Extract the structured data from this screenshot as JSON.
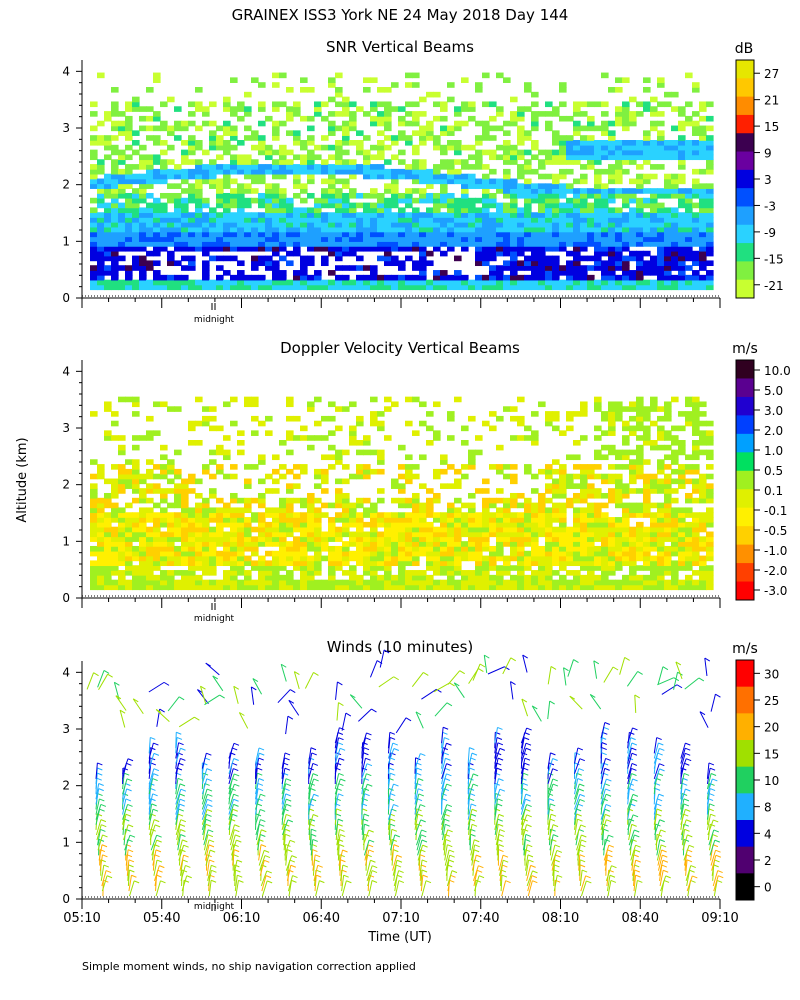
{
  "figure": {
    "title": "GRAINEX ISS3 York NE  24 May 2018 Day 144",
    "ylabel": "Altitude (km)",
    "xlabel": "Time (UT)",
    "footnote": "Simple moment winds, no ship navigation correction applied",
    "midnight_label": "midnight"
  },
  "chart_data": [
    {
      "type": "heatmap",
      "title": "SNR Vertical Beams",
      "xlabel": "Time (UT)",
      "ylabel": "Altitude (km)",
      "xlim": [
        "05:10",
        "09:10"
      ],
      "ylim": [
        0,
        4
      ],
      "yticks": [
        "0",
        "1",
        "2",
        "3",
        "4"
      ],
      "colorbar_unit": "dB",
      "colorbar_labels": [
        "27",
        "21",
        "15",
        "9",
        "3",
        "-3",
        "-9",
        "-15",
        "-21"
      ],
      "colors": [
        "#e6e600",
        "#ffc800",
        "#ff8c00",
        "#ff2000",
        "#3c0050",
        "#6a00a0",
        "#0000e0",
        "#0050ff",
        "#1ea0ff",
        "#2ad2ff",
        "#20e080",
        "#80f040",
        "#c8ff30"
      ]
    },
    {
      "type": "heatmap",
      "title": "Doppler Velocity Vertical Beams",
      "xlabel": "Time (UT)",
      "ylabel": "Altitude (km)",
      "xlim": [
        "05:10",
        "09:10"
      ],
      "ylim": [
        0,
        4
      ],
      "yticks": [
        "0",
        "1",
        "2",
        "3",
        "4"
      ],
      "colorbar_unit": "m/s",
      "colorbar_labels": [
        "10.0",
        "5.0",
        "3.0",
        "2.0",
        "1.0",
        "0.5",
        "0.1",
        "-0.1",
        "-0.5",
        "-1.0",
        "-2.0",
        "-3.0"
      ],
      "colors": [
        "#300020",
        "#5a0090",
        "#2000d0",
        "#0040ff",
        "#00a0ff",
        "#00e060",
        "#a0f020",
        "#e0f000",
        "#fff000",
        "#ffd000",
        "#ff9000",
        "#ff4000",
        "#ff0000"
      ]
    },
    {
      "type": "scatter",
      "title": "Winds (10 minutes)",
      "xlabel": "Time (UT)",
      "ylabel": "Altitude (km)",
      "xlim": [
        "05:10",
        "09:10"
      ],
      "ylim": [
        0,
        4
      ],
      "xticks": [
        "05:10",
        "05:40",
        "06:10",
        "06:40",
        "07:10",
        "07:40",
        "08:10",
        "08:40",
        "09:10"
      ],
      "yticks": [
        "0",
        "1",
        "2",
        "3",
        "4"
      ],
      "colorbar_unit": "m/s",
      "colorbar_labels": [
        "30",
        "25",
        "20",
        "15",
        "10",
        "8",
        "4",
        "2",
        "0"
      ],
      "colors": [
        "#ff0000",
        "#ff7000",
        "#ffb000",
        "#a0e000",
        "#20d060",
        "#20b0ff",
        "#0000e0",
        "#500070",
        "#000000"
      ]
    }
  ]
}
